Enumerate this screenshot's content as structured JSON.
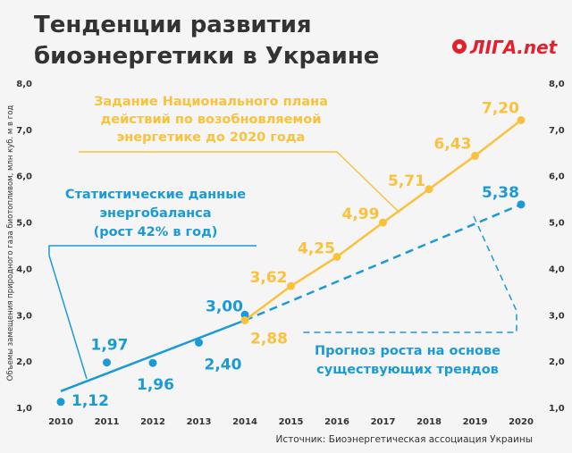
{
  "header": {
    "title_line1": "Тенденции развития",
    "title_line2": "биоэнергетики в Украине"
  },
  "logo": {
    "text": "ЛIГА.net"
  },
  "source": "Источник: Биоэнергетическая ассоциация Украины",
  "colors": {
    "blue": "#1a9ad6",
    "yellow": "#f9c23c",
    "text": "#333333",
    "background": "#f5f5f5",
    "grid": "#dddddd",
    "logo": "#e4202d"
  },
  "chart_data": {
    "type": "line",
    "ylabel": "Объемы замещения природного газа биотопливом, млн куб. м в год",
    "ylim": [
      1.0,
      8.0
    ],
    "yticks": [
      "1,0",
      "2,0",
      "3,0",
      "4,0",
      "5,0",
      "6,0",
      "7,0",
      "8,0"
    ],
    "x": [
      2010,
      2011,
      2012,
      2013,
      2014,
      2015,
      2016,
      2017,
      2018,
      2019,
      2020
    ],
    "xticks": [
      "2010",
      "2011",
      "2012",
      "2013",
      "2014",
      "2015",
      "2016",
      "2017",
      "2018",
      "2019",
      "2020"
    ],
    "grid": false,
    "series": [
      {
        "name": "statistics",
        "style": "points",
        "color": "#1a9ad6",
        "points": [
          {
            "x": 2010,
            "y": 1.12,
            "label": "1,12"
          },
          {
            "x": 2011,
            "y": 1.97,
            "label": "1,97"
          },
          {
            "x": 2012,
            "y": 1.96,
            "label": "1,96"
          },
          {
            "x": 2013,
            "y": 2.4,
            "label": "2,40"
          },
          {
            "x": 2014,
            "y": 3.0,
            "label": "3,00"
          }
        ]
      },
      {
        "name": "trend",
        "style": "solid-then-dashed",
        "color": "#1a9ad6",
        "points": [
          {
            "x": 2010,
            "y": 1.35
          },
          {
            "x": 2014,
            "y": 2.88
          },
          {
            "x": 2020,
            "y": 5.38,
            "label": "5,38"
          }
        ]
      },
      {
        "name": "plan",
        "style": "line",
        "color": "#f9c23c",
        "points": [
          {
            "x": 2014,
            "y": 2.88,
            "label": "2,88"
          },
          {
            "x": 2015,
            "y": 3.62,
            "label": "3,62"
          },
          {
            "x": 2016,
            "y": 4.25,
            "label": "4,25"
          },
          {
            "x": 2017,
            "y": 4.99,
            "label": "4,99"
          },
          {
            "x": 2018,
            "y": 5.71,
            "label": "5,71"
          },
          {
            "x": 2019,
            "y": 6.43,
            "label": "6,43"
          },
          {
            "x": 2020,
            "y": 7.2,
            "label": "7,20"
          }
        ]
      }
    ],
    "annotations": {
      "stats": [
        "Статистические данные",
        "энергобаланса",
        "(рост 42% в год)"
      ],
      "plan": [
        "Задание Национального плана",
        "действий по возобновляемой",
        "энергетике до 2020 года"
      ],
      "forecast": [
        "Прогноз роста на основе",
        "существующих трендов"
      ]
    }
  }
}
